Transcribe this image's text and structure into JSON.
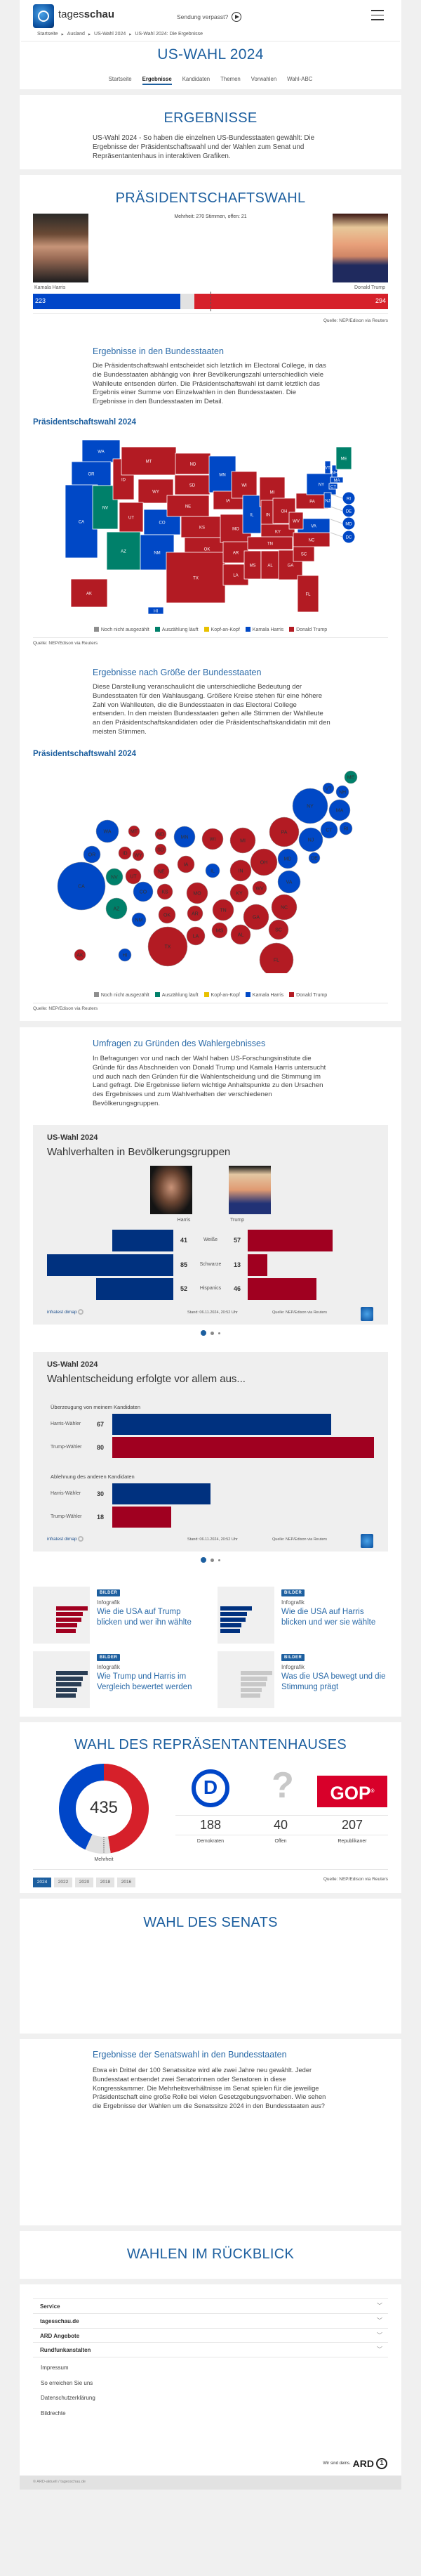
{
  "header": {
    "logo_text_light": "tages",
    "logo_text_bold": "schau",
    "missed_show_label": "Sendung verpasst?",
    "breadcrumb": [
      "Startseite",
      "Ausland",
      "US-Wahl 2024",
      "US-Wahl 2024: Die Ergebnisse"
    ],
    "page_title": "US-WAHL 2024",
    "subnav": [
      "Startseite",
      "Ergebnisse",
      "Kandidaten",
      "Themen",
      "Vorwahlen",
      "Wahl-ABC"
    ],
    "subnav_active": "Ergebnisse"
  },
  "intro": {
    "title": "ERGEBNISSE",
    "text": "US-Wahl 2024 - So haben die einzelnen US-Bundesstaaten gewählt: Die Ergebnisse der Präsidentschaftswahl und der Wahlen zum Senat und Repräsentantenhaus in interaktiven Grafiken."
  },
  "president": {
    "title": "PRÄSIDENTSCHAFTSWAHL",
    "majority_text": "Mehrheit: 270 Stimmen, offen: 21",
    "harris": {
      "name": "Kamala Harris",
      "votes": 223,
      "color": "#0046c8"
    },
    "trump": {
      "name": "Donald Trump",
      "votes": 294,
      "color": "#d6202a"
    },
    "open_votes": 21,
    "majority": 270,
    "source": "Quelle: NEP/Edison via Reuters",
    "states_section": {
      "title": "Ergebnisse in den Bundesstaaten",
      "text": "Die Präsidentschaftswahl entscheidet sich letztlich im Electoral College, in das die Bundesstaaten abhängig von ihrer Bevölkerungszahl unterschiedlich viele Wahlleute entsenden dürfen. Die Präsidentschaftswahl ist damit letztlich das Ergebnis einer Summe von Einzelwahlen in den Bundesstaaten. Die Ergebnisse in den Bundesstaaten im Detail.",
      "chart_title": "Präsidentschaftswahl 2024"
    },
    "size_section": {
      "title": "Ergebnisse nach Größe der Bundesstaaten",
      "text": "Diese Darstellung veranschaulicht die unterschiedliche Bedeutung der Bundesstaaten für den Wahlausgang. Größere Kreise stehen für eine höhere Zahl von Wahlleuten, die die Bundesstaaten in das Electoral College entsenden. In den meisten Bundesstaaten gehen alle Stimmen der Wahlleute an den Präsidentschaftskandidaten oder die Präsidentschaftskandidatin mit den meisten Stimmen.",
      "chart_title": "Präsidentschaftswahl 2024"
    },
    "legend": [
      {
        "label": "Noch nicht ausgezählt",
        "color": "#8e8e8e",
        "key": "none"
      },
      {
        "label": "Auszählung läuft",
        "color": "#00806a",
        "key": "counting"
      },
      {
        "label": "Kopf-an-Kopf",
        "color": "#e8c100",
        "key": "tossup"
      },
      {
        "label": "Kamala Harris",
        "color": "#0048c6",
        "key": "harris"
      },
      {
        "label": "Donald Trump",
        "color": "#b31b23",
        "key": "trump"
      }
    ],
    "states": {
      "WA": "harris",
      "OR": "harris",
      "CA": "harris",
      "NV": "counting",
      "ID": "trump",
      "MT": "trump",
      "WY": "trump",
      "UT": "trump",
      "AZ": "counting",
      "CO": "harris",
      "NM": "harris",
      "ND": "trump",
      "SD": "trump",
      "NE": "trump",
      "KS": "trump",
      "OK": "trump",
      "TX": "trump",
      "MN": "harris",
      "IA": "trump",
      "MO": "trump",
      "AR": "trump",
      "LA": "trump",
      "WI": "trump",
      "IL": "harris",
      "MI": "trump",
      "IN": "trump",
      "OH": "trump",
      "KY": "trump",
      "TN": "trump",
      "MS": "trump",
      "AL": "trump",
      "GA": "trump",
      "FL": "trump",
      "SC": "trump",
      "NC": "trump",
      "VA": "harris",
      "WV": "trump",
      "PA": "trump",
      "NY": "harris",
      "VT": "harris",
      "NH": "harris",
      "ME": "counting",
      "MA": "harris",
      "CT": "harris",
      "NJ": "harris",
      "RI": "harris",
      "DE": "harris",
      "MD": "harris",
      "DC": "harris",
      "AK": "trump",
      "HI": "harris"
    }
  },
  "polls": {
    "title": "Umfragen zu Gründen des Wahlergebnisses",
    "text": "In Befragungen vor und nach der Wahl haben US-Forschungsinstitute die Gründe für das Abschneiden von Donald Trump und Kamala Harris untersucht und auch nach den Gründen für die Wahlentscheidung und die Stimmung im Land gefragt. Die Ergebnisse liefern wichtige Anhaltspunkte zu den Ursachen des Ergebnisses und zum Wahlverhalten der verschiedenen Bevölkerungsgruppen.",
    "chart1": {
      "kicker": "US-Wahl 2024",
      "title": "Wahlverhalten in Bevölkerungsgruppen",
      "harris_label": "Harris",
      "trump_label": "Trump",
      "rows": [
        {
          "group": "Weiße",
          "harris": 41,
          "trump": 57
        },
        {
          "group": "Schwarze",
          "harris": 85,
          "trump": 13
        },
        {
          "group": "Hispanics",
          "harris": 52,
          "trump": 46
        }
      ],
      "brand": "infratest dimap",
      "stand": "Stand:  06.11.2024, 20:52 Uhr",
      "source": "Quelle: NEP/Edison via Reuters"
    },
    "chart2": {
      "kicker": "US-Wahl 2024",
      "title": "Wahlentscheidung erfolgte vor allem aus...",
      "groups": [
        {
          "label": "Überzeugung von meinem Kandidaten",
          "rows": [
            {
              "name": "Harris-Wähler",
              "value": 67,
              "party": "harris"
            },
            {
              "name": "Trump-Wähler",
              "value": 80,
              "party": "trump"
            }
          ]
        },
        {
          "label": "Ablehnung des anderen Kandidaten",
          "rows": [
            {
              "name": "Harris-Wähler",
              "value": 30,
              "party": "harris"
            },
            {
              "name": "Trump-Wähler",
              "value": 18,
              "party": "trump"
            }
          ]
        }
      ],
      "brand": "infratest dimap",
      "stand": "Stand:  06.11.2024, 20:52 Uhr",
      "source": "Quelle: NEP/Edison via Reuters"
    },
    "carousel_pages": 3,
    "carousel_active": 1,
    "poll_colors": {
      "harris": "#00317f",
      "trump": "#a00020"
    },
    "teasers": [
      {
        "badge": "BILDER",
        "kicker": "Infografik",
        "title": "Wie die USA auf Trump blicken und wer ihn wählte"
      },
      {
        "badge": "BILDER",
        "kicker": "Infografik",
        "title": "Wie die USA auf Harris blicken und wer sie wählte"
      },
      {
        "badge": "BILDER",
        "kicker": "Infografik",
        "title": "Wie Trump und Harris im Vergleich bewertet werden"
      },
      {
        "badge": "BILDER",
        "kicker": "Infografik",
        "title": "Was die USA bewegt und die Stimmung prägt"
      }
    ]
  },
  "house": {
    "title": "WAHL DES REPRÄSENTANTENHAUSES",
    "total": 435,
    "majority_label": "Mehrheit",
    "parties": [
      {
        "key": "dem",
        "label": "Demokraten",
        "seats": 188,
        "color": "#0046c8"
      },
      {
        "key": "open",
        "label": "Offen",
        "seats": 40,
        "color": "#e0e0e0"
      },
      {
        "key": "rep",
        "label": "Republikaner",
        "seats": 207,
        "color": "#d6202a"
      }
    ],
    "gop_logo": "GOP",
    "years": [
      "2024",
      "2022",
      "2020",
      "2018",
      "2016"
    ],
    "active_year": "2024",
    "source": "Quelle: NEP/Edison via Reuters"
  },
  "senate": {
    "title": "WAHL DES SENATS",
    "section_title": "Ergebnisse der Senatswahl in den Bundesstaaten",
    "text": "Etwa ein Drittel der 100 Senatssitze wird alle zwei Jahre neu gewählt. Jeder Bundesstaat entsendet zwei Senatorinnen oder Senatoren in diese Kongresskammer. Die Mehrheitsverhältnisse im Senat spielen für die jeweilige Präsidentschaft eine große Rolle bei vielen Gesetzgebungsvorhaben. Wie sehen die Ergebnisse der Wahlen um die Senatssitze 2024 in den Bundesstaaten aus?"
  },
  "review": {
    "title": "WAHLEN IM RÜCKBLICK"
  },
  "footer": {
    "accordion": [
      "Service",
      "tagesschau.de",
      "ARD Angebote",
      "Rundfunkanstalten"
    ],
    "links": [
      "Impressum",
      "So erreichen Sie uns",
      "Datenschutzerklärung",
      "Bildrechte"
    ],
    "ard_claim": "Wir sind deins.",
    "ard_logo": "ARD",
    "copyright": "© ARD-aktuell / tagesschau.de"
  }
}
